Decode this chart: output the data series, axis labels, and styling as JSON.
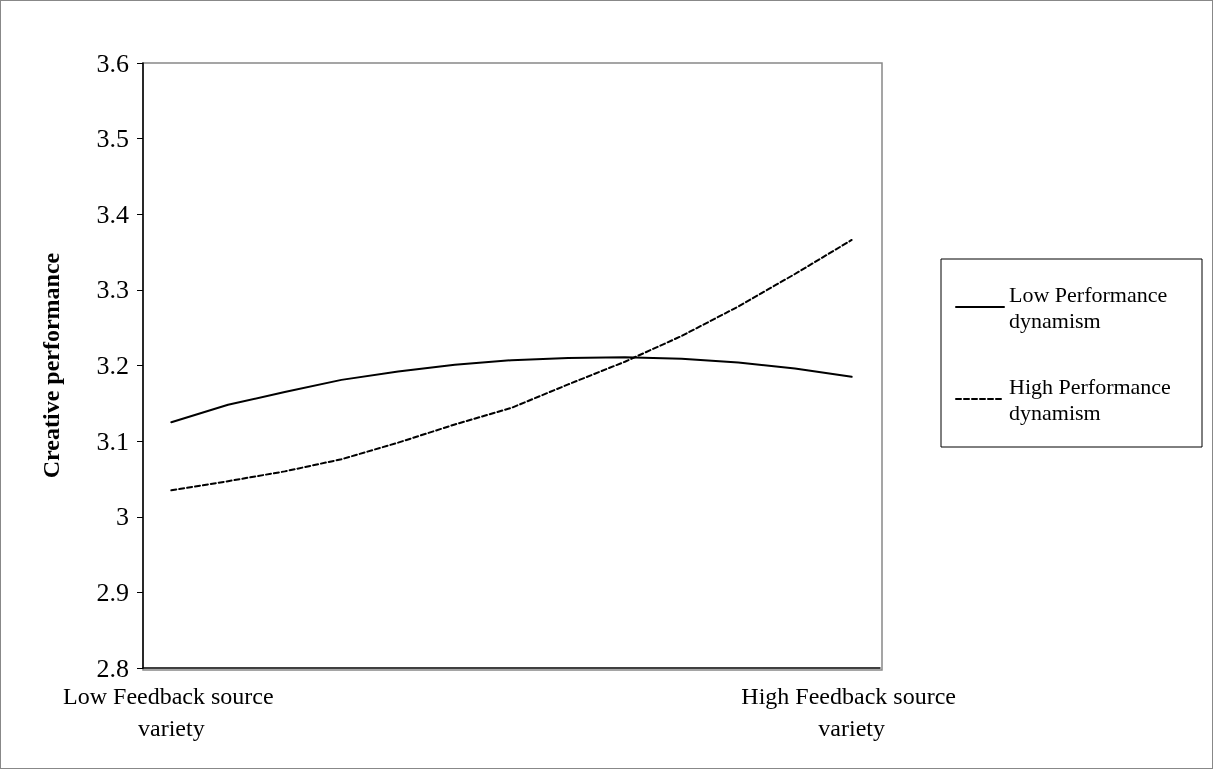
{
  "chart_data": {
    "type": "line",
    "ylabel": "Creative performance",
    "categories": [
      "Low Feedback source variety",
      null,
      null,
      null,
      null,
      null,
      null,
      null,
      null,
      null,
      null,
      null,
      "High Feedback source variety"
    ],
    "series": [
      {
        "name": "Low Performance dynamism",
        "color": "#000000",
        "line_style": "solid",
        "values": [
          3.125,
          3.148,
          3.165,
          3.181,
          3.192,
          3.201,
          3.207,
          3.21,
          3.211,
          3.209,
          3.204,
          3.196,
          3.185
        ]
      },
      {
        "name": "High Performance dynamism",
        "color": "#000000",
        "line_style": "dashed",
        "values": [
          3.035,
          3.047,
          3.06,
          3.076,
          3.098,
          3.122,
          3.144,
          3.175,
          3.205,
          3.239,
          3.278,
          3.321,
          3.366
        ]
      }
    ],
    "ylim": [
      2.8,
      3.6
    ],
    "yticks": [
      2.8,
      2.9,
      3,
      3.1,
      3.2,
      3.3,
      3.4,
      3.5,
      3.6
    ],
    "grid": false,
    "legend": "right",
    "marker": "none"
  }
}
